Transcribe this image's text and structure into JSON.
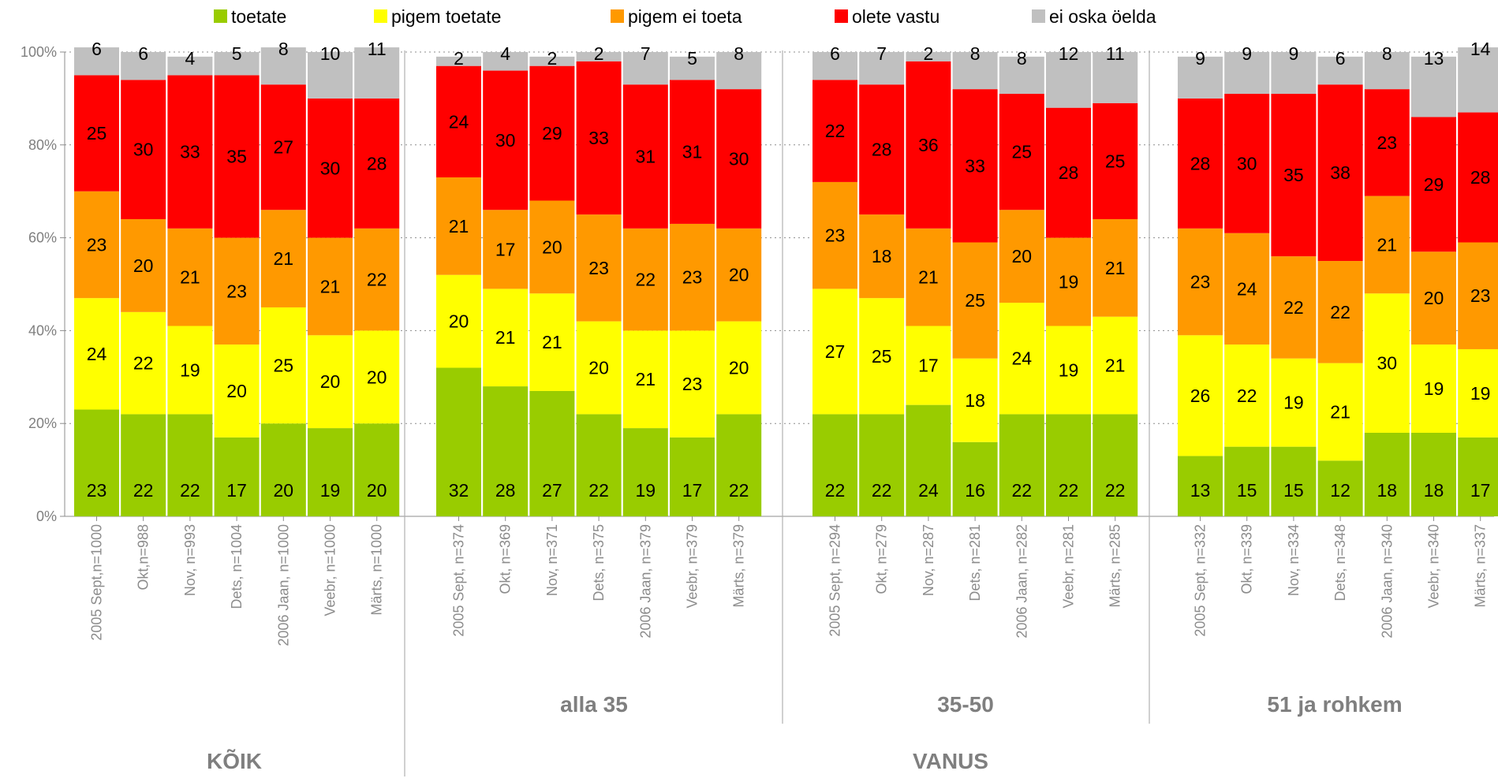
{
  "chart_data": {
    "type": "bar",
    "stacked": true,
    "ylim": [
      0,
      100
    ],
    "yticks": [
      "0%",
      "20%",
      "40%",
      "60%",
      "80%",
      "100%"
    ],
    "grid": true,
    "legend_position": "top",
    "series": [
      {
        "name": "toetate",
        "color": "#99cc00"
      },
      {
        "name": "pigem toetate",
        "color": "#ffff00"
      },
      {
        "name": "pigem ei toeta",
        "color": "#ff9900"
      },
      {
        "name": "olete vastu",
        "color": "#ff0000"
      },
      {
        "name": "ei oska öelda",
        "color": "#c0c0c0"
      }
    ],
    "groups": [
      {
        "label": "",
        "categories": [
          "2005 Sept,n=1000",
          "Okt,n=988",
          "Nov, n=993",
          "Dets, n=1004",
          "2006 Jaan, n=1000",
          "Veebr, n=1000",
          "Märts, n=1000"
        ],
        "values": [
          [
            23,
            24,
            23,
            25,
            6
          ],
          [
            22,
            22,
            20,
            30,
            6
          ],
          [
            22,
            19,
            21,
            33,
            4
          ],
          [
            17,
            20,
            23,
            35,
            5
          ],
          [
            20,
            25,
            21,
            27,
            8
          ],
          [
            19,
            20,
            21,
            30,
            10
          ],
          [
            20,
            20,
            22,
            28,
            11
          ]
        ]
      },
      {
        "label": "alla 35",
        "categories": [
          "2005 Sept, n=374",
          "Okt, n=369",
          "Nov, n=371",
          "Dets, n=375",
          "2006 Jaan, n=379",
          "Veebr, n=379",
          "Märts, n=379"
        ],
        "values": [
          [
            32,
            20,
            21,
            24,
            2
          ],
          [
            28,
            21,
            17,
            30,
            4
          ],
          [
            27,
            21,
            20,
            29,
            2
          ],
          [
            22,
            20,
            23,
            33,
            2
          ],
          [
            19,
            21,
            22,
            31,
            7
          ],
          [
            17,
            23,
            23,
            31,
            5
          ],
          [
            22,
            20,
            20,
            30,
            8
          ]
        ]
      },
      {
        "label": "35-50",
        "categories": [
          "2005 Sept, n=294",
          "Okt, n=279",
          "Nov, n=287",
          "Dets, n=281",
          "2006 Jaan, n=282",
          "Veebr, n=281",
          "Märts, n=285"
        ],
        "values": [
          [
            22,
            27,
            23,
            22,
            6
          ],
          [
            22,
            25,
            18,
            28,
            7
          ],
          [
            24,
            17,
            21,
            36,
            2
          ],
          [
            16,
            18,
            25,
            33,
            8
          ],
          [
            22,
            24,
            20,
            25,
            8
          ],
          [
            22,
            19,
            19,
            28,
            12
          ],
          [
            22,
            21,
            21,
            25,
            11
          ]
        ]
      },
      {
        "label": "51 ja rohkem",
        "categories": [
          "2005 Sept, n=332",
          "Okt, n=339",
          "Nov, n=334",
          "Dets, n=348",
          "2006 Jaan, n=340",
          "Veebr, n=340",
          "Märts, n=337"
        ],
        "values": [
          [
            13,
            26,
            23,
            28,
            9
          ],
          [
            15,
            22,
            24,
            30,
            9
          ],
          [
            15,
            19,
            22,
            35,
            9
          ],
          [
            12,
            21,
            22,
            38,
            6
          ],
          [
            18,
            30,
            21,
            23,
            8
          ],
          [
            18,
            19,
            20,
            29,
            13
          ],
          [
            17,
            19,
            23,
            28,
            14
          ]
        ]
      }
    ],
    "sections": [
      {
        "label": "KÕIK",
        "groups": [
          0
        ]
      },
      {
        "label": "VANUS",
        "groups": [
          1,
          2,
          3
        ]
      }
    ]
  }
}
